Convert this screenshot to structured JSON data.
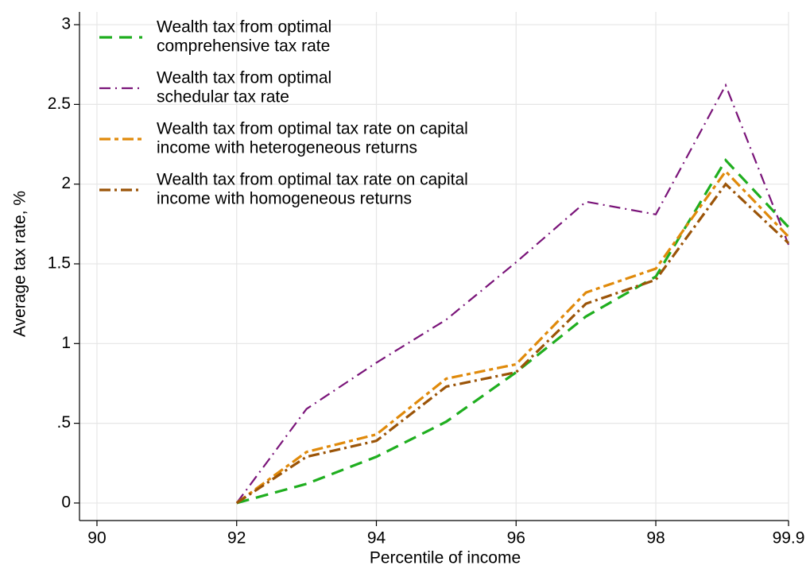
{
  "chart_data": {
    "type": "line",
    "xlabel": "Percentile of income",
    "ylabel": "Average tax rate, %",
    "x": [
      92,
      93,
      94,
      95,
      96,
      97,
      98,
      99,
      99.9
    ],
    "series": [
      {
        "name": [
          "Wealth tax from optimal",
          "comprehensive tax rate"
        ],
        "color": "#1fae1f",
        "values": [
          0,
          0.12,
          0.29,
          0.51,
          0.82,
          1.17,
          1.42,
          2.15,
          1.73
        ]
      },
      {
        "name": [
          "Wealth tax from optimal",
          "schedular tax rate"
        ],
        "color": "#7a1479",
        "values": [
          0,
          0.59,
          0.88,
          1.15,
          1.51,
          1.89,
          1.81,
          2.62,
          1.62
        ]
      },
      {
        "name": [
          "Wealth tax from optimal tax rate on capital",
          "income with heterogeneous returns"
        ],
        "color": "#e08a0b",
        "values": [
          0,
          0.32,
          0.43,
          0.78,
          0.87,
          1.32,
          1.47,
          2.08,
          1.67
        ]
      },
      {
        "name": [
          "Wealth tax from optimal tax rate on capital",
          "income with homogeneous returns"
        ],
        "color": "#9b5408",
        "values": [
          0,
          0.29,
          0.39,
          0.73,
          0.82,
          1.25,
          1.4,
          2.0,
          1.63
        ]
      }
    ],
    "xlim": [
      89.75,
      99.9
    ],
    "xticks": [
      90,
      92,
      94,
      96,
      98,
      99.9
    ],
    "ylim": [
      -0.11,
      3.08
    ],
    "yticks": [
      0,
      {
        "value": 0.5,
        "label": ".5"
      },
      1,
      1.5,
      2,
      2.5,
      3
    ],
    "grid": true,
    "legend": "top-left"
  }
}
